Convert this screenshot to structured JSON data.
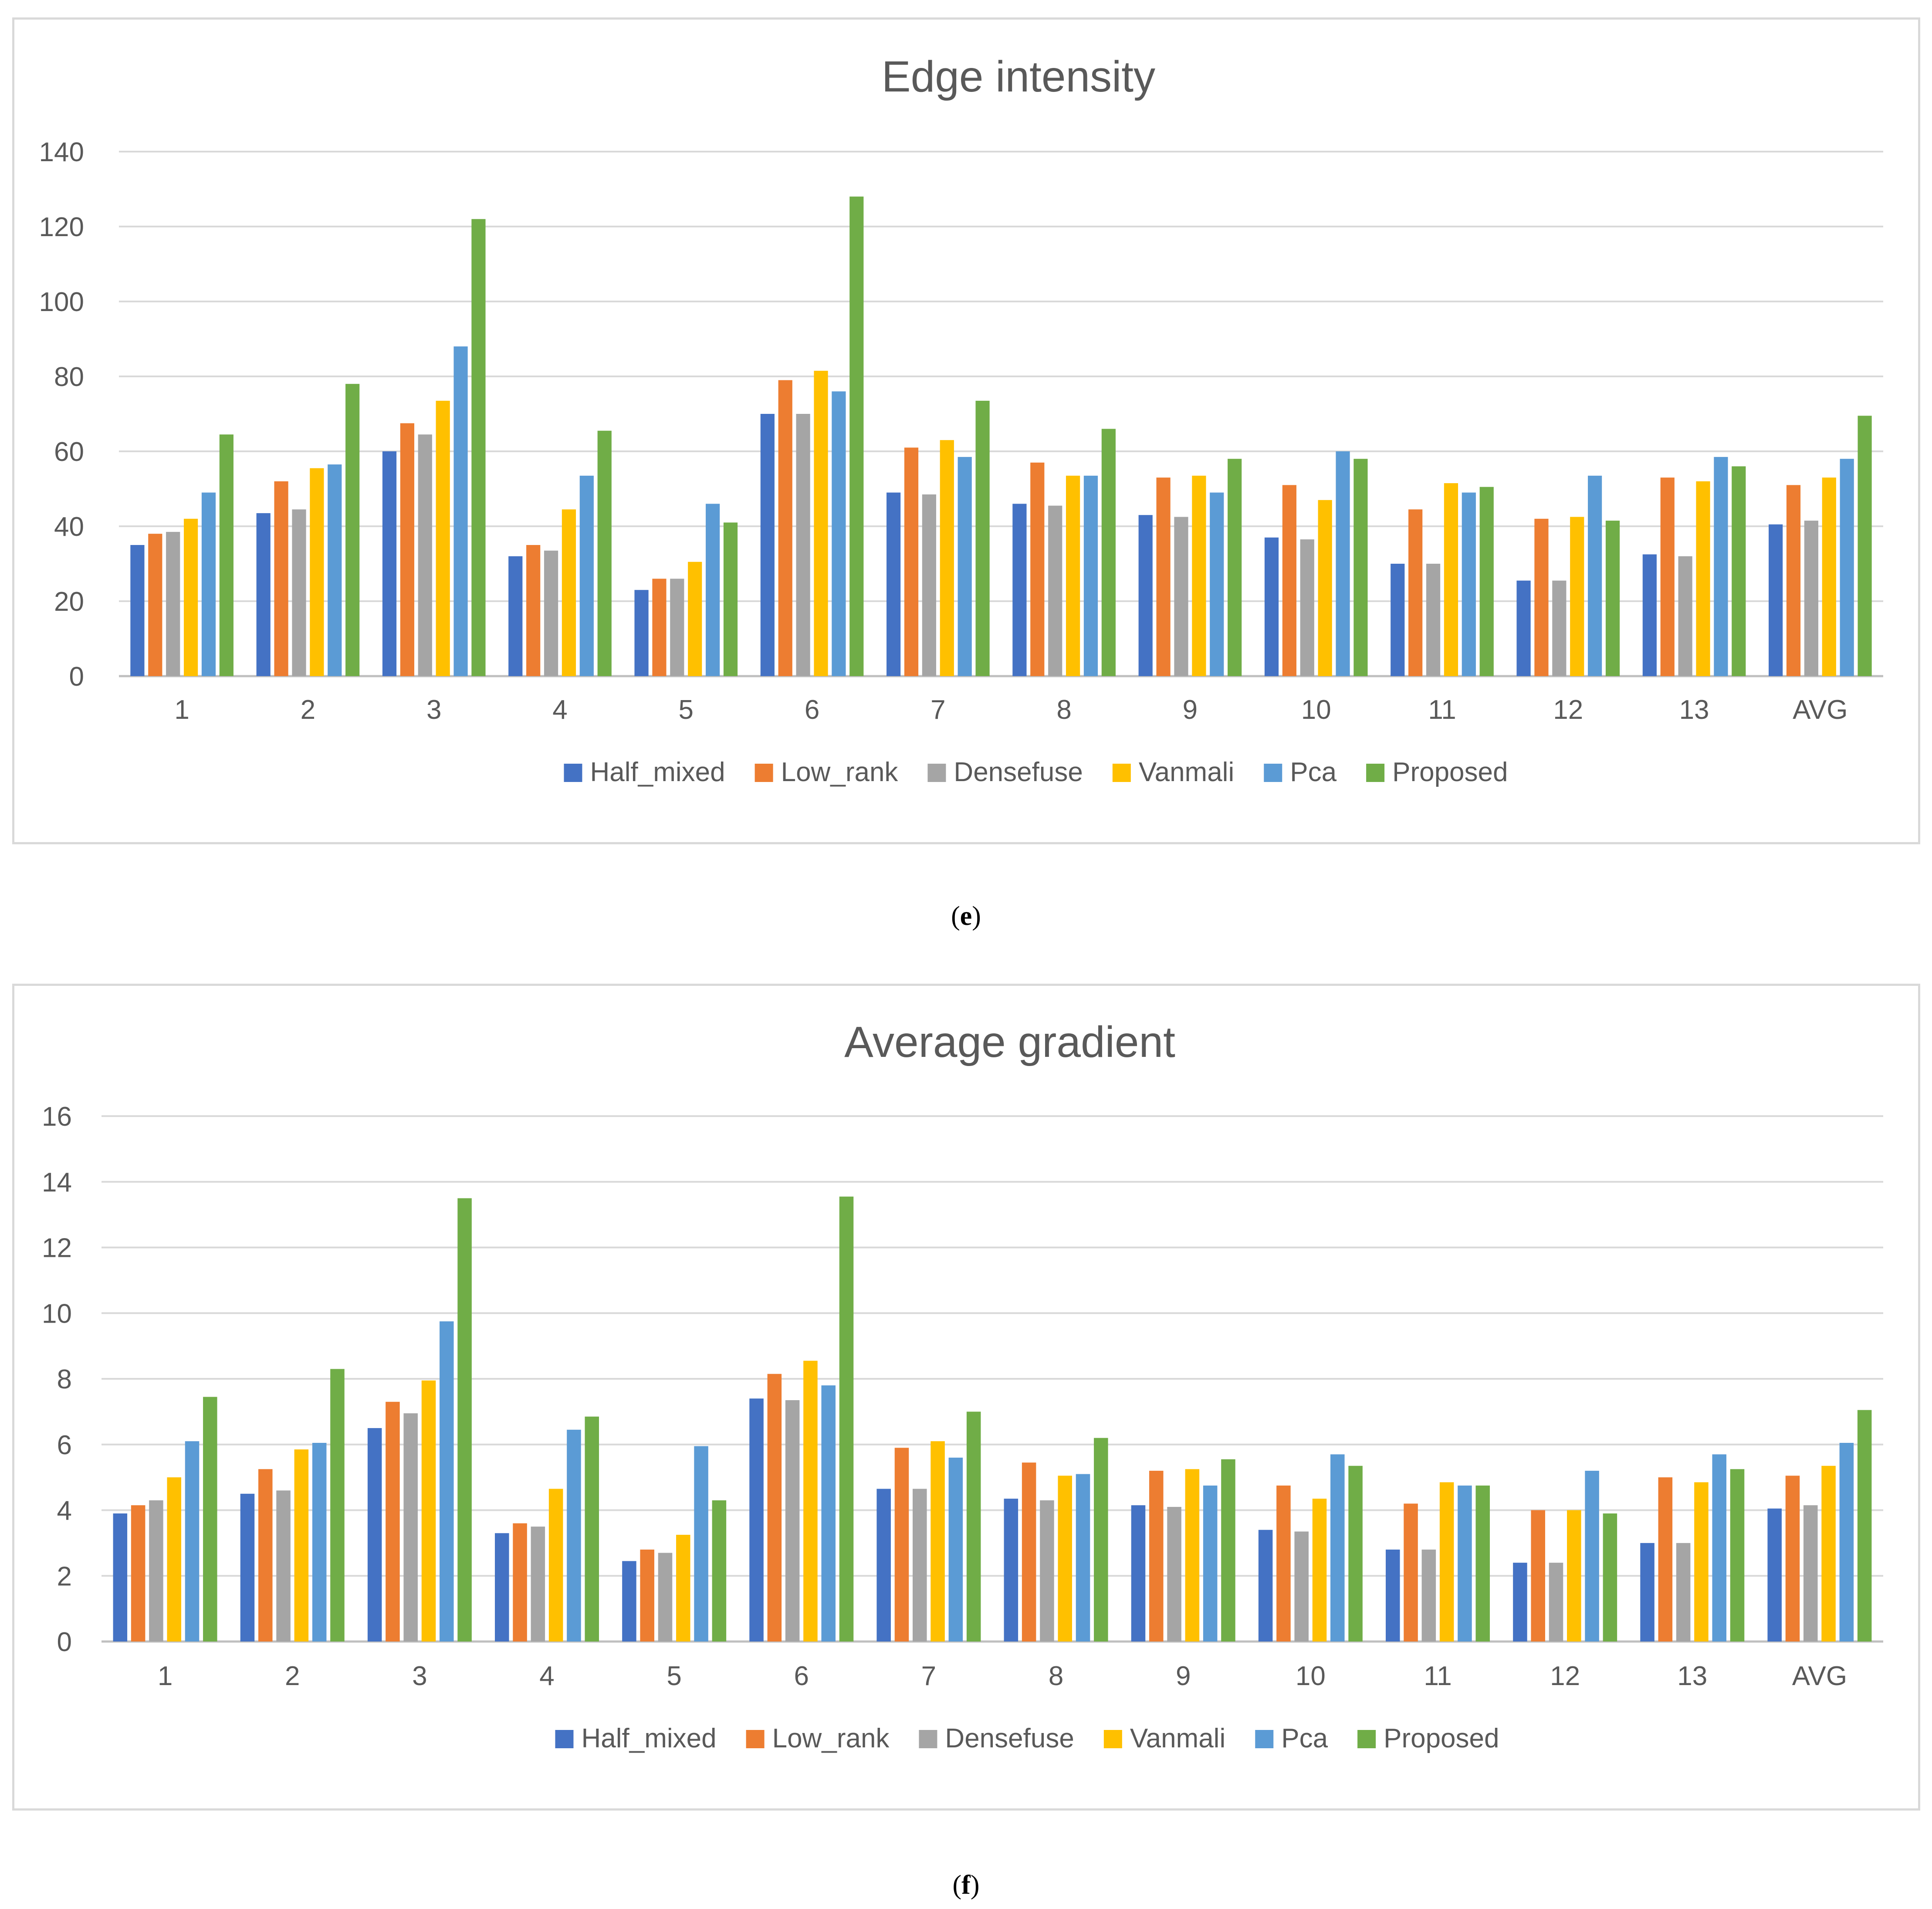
{
  "series_names": [
    "Half_mixed",
    "Low_rank",
    "Densefuse",
    "Vanmali",
    "Pca",
    "Proposed"
  ],
  "series_colors": [
    "#4472c4",
    "#ed7d31",
    "#a5a5a5",
    "#ffc000",
    "#5b9bd5",
    "#70ad47"
  ],
  "captions": {
    "e": {
      "open": "(",
      "letter": "e",
      "close": ")"
    },
    "f": {
      "open": "(",
      "letter": "f",
      "close": ")"
    }
  },
  "chart_data": [
    {
      "id": "e",
      "type": "bar",
      "title": "Edge intensity",
      "xlabel": "",
      "ylabel": "",
      "ylim": [
        0,
        140
      ],
      "ytick_step": 20,
      "yticks": [
        "0",
        "20",
        "40",
        "60",
        "80",
        "100",
        "120",
        "140"
      ],
      "grid": true,
      "legend": "bottom",
      "categories": [
        "1",
        "2",
        "3",
        "4",
        "5",
        "6",
        "7",
        "8",
        "9",
        "10",
        "11",
        "12",
        "13",
        "AVG"
      ],
      "series": [
        {
          "name": "Half_mixed",
          "values": [
            35,
            43.5,
            60,
            32,
            23,
            70,
            49,
            46,
            43,
            37,
            30,
            25.5,
            32.5,
            40.5
          ]
        },
        {
          "name": "Low_rank",
          "values": [
            38,
            52,
            67.5,
            35,
            26,
            79,
            61,
            57,
            53,
            51,
            44.5,
            42,
            53,
            51
          ]
        },
        {
          "name": "Densefuse",
          "values": [
            38.5,
            44.5,
            64.5,
            33.5,
            26,
            70,
            48.5,
            45.5,
            42.5,
            36.5,
            30,
            25.5,
            32,
            41.5
          ]
        },
        {
          "name": "Vanmali",
          "values": [
            42,
            55.5,
            73.5,
            44.5,
            30.5,
            81.5,
            63,
            53.5,
            53.5,
            47,
            51.5,
            42.5,
            52,
            53
          ]
        },
        {
          "name": "Pca",
          "values": [
            49,
            56.5,
            88,
            53.5,
            46,
            76,
            58.5,
            53.5,
            49,
            60,
            49,
            53.5,
            58.5,
            58
          ]
        },
        {
          "name": "Proposed",
          "values": [
            64.5,
            78,
            122,
            65.5,
            41,
            128,
            73.5,
            66,
            58,
            58,
            50.5,
            41.5,
            56,
            69.5
          ]
        }
      ]
    },
    {
      "id": "f",
      "type": "bar",
      "title": "Average gradient",
      "xlabel": "",
      "ylabel": "",
      "ylim": [
        0,
        16
      ],
      "ytick_step": 2,
      "yticks": [
        "0",
        "2",
        "4",
        "6",
        "8",
        "10",
        "12",
        "14",
        "16"
      ],
      "grid": true,
      "legend": "bottom",
      "categories": [
        "1",
        "2",
        "3",
        "4",
        "5",
        "6",
        "7",
        "8",
        "9",
        "10",
        "11",
        "12",
        "13",
        "AVG"
      ],
      "series": [
        {
          "name": "Half_mixed",
          "values": [
            3.9,
            4.5,
            6.5,
            3.3,
            2.45,
            7.4,
            4.65,
            4.35,
            4.15,
            3.4,
            2.8,
            2.4,
            3.0,
            4.05
          ]
        },
        {
          "name": "Low_rank",
          "values": [
            4.15,
            5.25,
            7.3,
            3.6,
            2.8,
            8.15,
            5.9,
            5.45,
            5.2,
            4.75,
            4.2,
            4.0,
            5.0,
            5.05
          ]
        },
        {
          "name": "Densefuse",
          "values": [
            4.3,
            4.6,
            6.95,
            3.5,
            2.7,
            7.35,
            4.65,
            4.3,
            4.1,
            3.35,
            2.8,
            2.4,
            3.0,
            4.15
          ]
        },
        {
          "name": "Vanmali",
          "values": [
            5.0,
            5.85,
            7.95,
            4.65,
            3.25,
            8.55,
            6.1,
            5.05,
            5.25,
            4.35,
            4.85,
            4.0,
            4.85,
            5.35
          ]
        },
        {
          "name": "Pca",
          "values": [
            6.1,
            6.05,
            9.75,
            6.45,
            5.95,
            7.8,
            5.6,
            5.1,
            4.75,
            5.7,
            4.75,
            5.2,
            5.7,
            6.05
          ]
        },
        {
          "name": "Proposed",
          "values": [
            7.45,
            8.3,
            13.5,
            6.85,
            4.3,
            13.55,
            7.0,
            6.2,
            5.55,
            5.35,
            4.75,
            3.9,
            5.25,
            7.05
          ]
        }
      ]
    }
  ]
}
